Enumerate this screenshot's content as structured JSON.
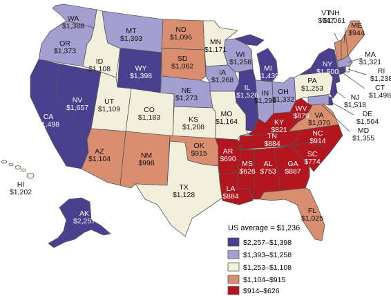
{
  "colors": {
    "c1": "#4b3f8f",
    "c2": "#a59fd1",
    "c3": "#f2f0dc",
    "c4": "#d98f6f",
    "c5": "#b3161f"
  },
  "legend": {
    "title": "US average = $1,236",
    "items": [
      {
        "cat": "c1",
        "label": "$2,257–$1,398"
      },
      {
        "cat": "c2",
        "label": "$1,393–$1,258"
      },
      {
        "cat": "c3",
        "label": "$1,253–$1,108"
      },
      {
        "cat": "c4",
        "label": "$1,104–$915"
      },
      {
        "cat": "c5",
        "label": "$914–$626"
      }
    ]
  },
  "states": [
    {
      "id": "WA",
      "value": "$1,388",
      "cat": "c2"
    },
    {
      "id": "OR",
      "value": "$1,373",
      "cat": "c2"
    },
    {
      "id": "CA",
      "value": "$1,498",
      "cat": "c1"
    },
    {
      "id": "NV",
      "value": "$1,657",
      "cat": "c1"
    },
    {
      "id": "ID",
      "value": "$1,108",
      "cat": "c3"
    },
    {
      "id": "MT",
      "value": "$1,393",
      "cat": "c2"
    },
    {
      "id": "WY",
      "value": "$1,398",
      "cat": "c1"
    },
    {
      "id": "UT",
      "value": "$1,109",
      "cat": "c3"
    },
    {
      "id": "AZ",
      "value": "$1,104",
      "cat": "c4"
    },
    {
      "id": "CO",
      "value": "$1,183",
      "cat": "c3"
    },
    {
      "id": "NM",
      "value": "$998",
      "cat": "c4"
    },
    {
      "id": "ND",
      "value": "$1,096",
      "cat": "c4"
    },
    {
      "id": "SD",
      "value": "$1,062",
      "cat": "c4"
    },
    {
      "id": "NE",
      "value": "$1,273",
      "cat": "c2"
    },
    {
      "id": "KS",
      "value": "$1,208",
      "cat": "c3"
    },
    {
      "id": "OK",
      "value": "$915",
      "cat": "c4"
    },
    {
      "id": "TX",
      "value": "$1,128",
      "cat": "c3"
    },
    {
      "id": "MN",
      "value": "$1,171",
      "cat": "c3"
    },
    {
      "id": "IA",
      "value": "$1,268",
      "cat": "c2"
    },
    {
      "id": "MO",
      "value": "$1,164",
      "cat": "c3"
    },
    {
      "id": "AR",
      "value": "$690",
      "cat": "c5"
    },
    {
      "id": "LA",
      "value": "$884",
      "cat": "c5"
    },
    {
      "id": "WI",
      "value": "$1,258",
      "cat": "c2"
    },
    {
      "id": "IL",
      "value": "$1,526",
      "cat": "c1"
    },
    {
      "id": "MI",
      "value": "$1,439",
      "cat": "c1"
    },
    {
      "id": "IN",
      "value": "$1,299",
      "cat": "c2"
    },
    {
      "id": "OH",
      "value": "$1,332",
      "cat": "c2"
    },
    {
      "id": "KY",
      "value": "$821",
      "cat": "c5"
    },
    {
      "id": "TN",
      "value": "$884",
      "cat": "c5"
    },
    {
      "id": "MS",
      "value": "$626",
      "cat": "c5"
    },
    {
      "id": "AL",
      "value": "$753",
      "cat": "c5"
    },
    {
      "id": "GA",
      "value": "$887",
      "cat": "c5"
    },
    {
      "id": "FL",
      "value": "$1,025",
      "cat": "c4"
    },
    {
      "id": "SC",
      "value": "$774",
      "cat": "c5"
    },
    {
      "id": "NC",
      "value": "$914",
      "cat": "c5"
    },
    {
      "id": "VA",
      "value": "$1,070",
      "cat": "c4"
    },
    {
      "id": "WV",
      "value": "$879",
      "cat": "c5"
    },
    {
      "id": "PA",
      "value": "$1,253",
      "cat": "c3"
    },
    {
      "id": "NY",
      "value": "$1,500",
      "cat": "c1"
    },
    {
      "id": "VT",
      "value": "$947",
      "cat": "c4"
    },
    {
      "id": "NH",
      "value": "$1,061",
      "cat": "c4"
    },
    {
      "id": "ME",
      "value": "$944",
      "cat": "c4"
    },
    {
      "id": "MA",
      "value": "$1,321",
      "cat": "c2"
    },
    {
      "id": "RI",
      "value": "$1,238",
      "cat": "c3"
    },
    {
      "id": "CT",
      "value": "$1,498",
      "cat": "c1"
    },
    {
      "id": "NJ",
      "value": "$1,518",
      "cat": "c1"
    },
    {
      "id": "DE",
      "value": "$1,504",
      "cat": "c1"
    },
    {
      "id": "MD",
      "value": "$1,355",
      "cat": "c2"
    },
    {
      "id": "AK",
      "value": "$2,257",
      "cat": "c1"
    },
    {
      "id": "HI",
      "value": "$1,202",
      "cat": "c3"
    }
  ]
}
